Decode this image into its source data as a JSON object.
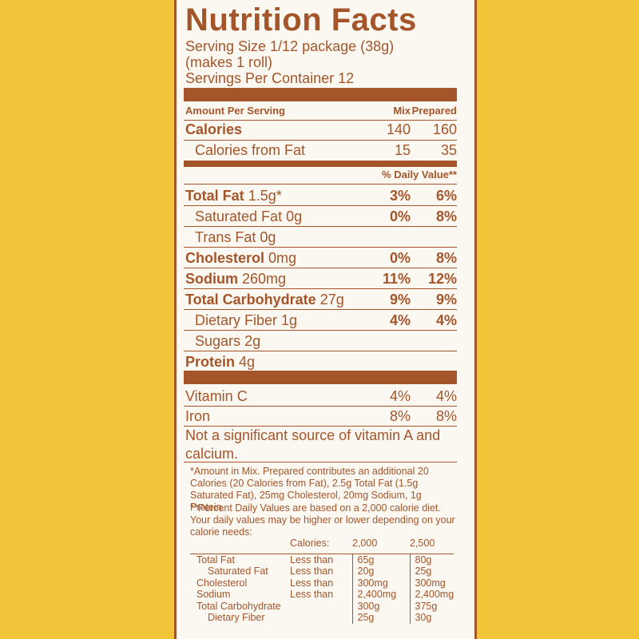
{
  "label": {
    "title": "Nutrition Facts",
    "serving_size_line1": "Serving Size 1/12 package (38g)",
    "serving_size_line2": "(makes 1 roll)",
    "servings_per_container": "Servings Per Container 12",
    "amount_per_serving": "Amount Per Serving",
    "col_mix": "Mix",
    "col_prepared": "Prepared",
    "calories": {
      "name": "Calories",
      "mix": "140",
      "prepared": "160"
    },
    "calories_from_fat": {
      "name": "Calories from Fat",
      "mix": "15",
      "prepared": "35"
    },
    "daily_value_header": "% Daily Value**",
    "nutrients": [
      {
        "name": "Total Fat",
        "amount": "1.5g*",
        "mix": "3%",
        "prepared": "6%"
      },
      {
        "name": "Saturated Fat",
        "amount": "0g",
        "mix": "0%",
        "prepared": "8%"
      },
      {
        "name": "Trans Fat",
        "amount": "0g",
        "mix": "",
        "prepared": ""
      },
      {
        "name": "Cholesterol",
        "amount": "0mg",
        "mix": "0%",
        "prepared": "8%"
      },
      {
        "name": "Sodium",
        "amount": "260mg",
        "mix": "11%",
        "prepared": "12%"
      },
      {
        "name": "Total Carbohydrate",
        "amount": "27g",
        "mix": "9%",
        "prepared": "9%"
      },
      {
        "name": "Dietary Fiber",
        "amount": "1g",
        "mix": "4%",
        "prepared": "4%"
      },
      {
        "name": "Sugars",
        "amount": "2g",
        "mix": "",
        "prepared": ""
      },
      {
        "name": "Protein",
        "amount": "4g",
        "mix": "",
        "prepared": ""
      }
    ],
    "vitamins": [
      {
        "name": "Vitamin C",
        "mix": "4%",
        "prepared": "4%"
      },
      {
        "name": "Iron",
        "mix": "8%",
        "prepared": "8%"
      }
    ],
    "not_significant": "Not a significant source of vitamin A and calcium.",
    "footnote_mix": "*Amount in Mix. Prepared contributes an additional 20 Calories (20 Calories from Fat), 2.5g Total Fat (1.5g Saturated Fat), 25mg Cholesterol, 20mg Sodium, 1g Protein.",
    "footnote_dv": "**Percent Daily Values are based on a 2,000 calorie diet. Your daily values may be higher or lower depending on your calorie needs:",
    "dv_table": {
      "header": {
        "label": "Calories:",
        "c2000": "2,000",
        "c2500": "2,500"
      },
      "rows": [
        {
          "name": "Total Fat",
          "limit": "Less than",
          "c2000": "65g",
          "c2500": "80g"
        },
        {
          "name": "Saturated Fat",
          "limit": "Less than",
          "c2000": "20g",
          "c2500": "25g"
        },
        {
          "name": "Cholesterol",
          "limit": "Less than",
          "c2000": "300mg",
          "c2500": "300mg"
        },
        {
          "name": "Sodium",
          "limit": "Less than",
          "c2000": "2,400mg",
          "c2500": "2,400mg"
        },
        {
          "name": "Total Carbohydrate",
          "limit": "",
          "c2000": "300g",
          "c2500": "375g"
        },
        {
          "name": "Dietary Fiber",
          "limit": "",
          "c2000": "25g",
          "c2500": "30g"
        }
      ]
    },
    "colors": {
      "ink": "#a4552a",
      "background": "#f1c43a",
      "panel": "#fbf8f2"
    }
  }
}
